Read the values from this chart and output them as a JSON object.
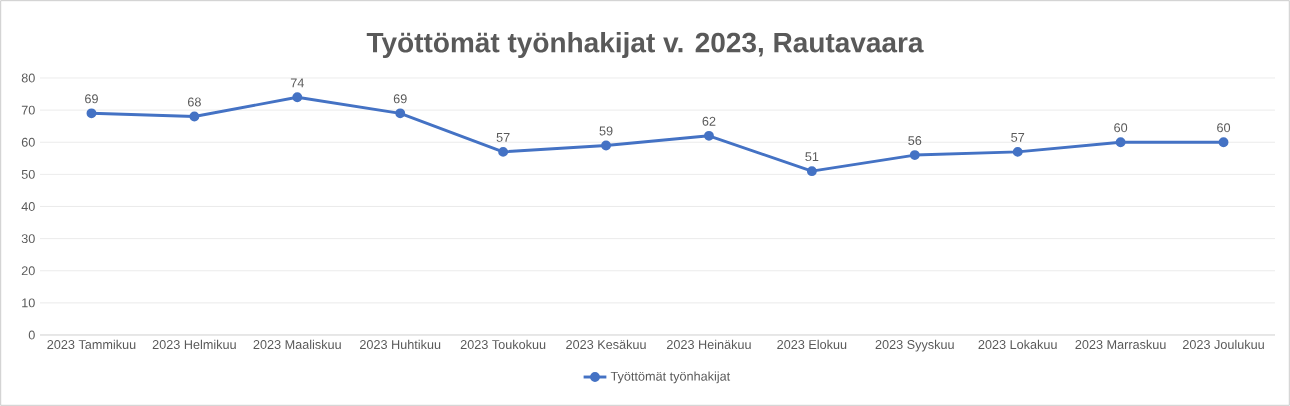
{
  "chart_data": {
    "type": "line",
    "title": "Työttömät työnhakijat v. 2023, Rautavaara",
    "categories": [
      "2023 Tammikuu",
      "2023 Helmikuu",
      "2023 Maaliskuu",
      "2023 Huhtikuu",
      "2023 Toukokuu",
      "2023 Kesäkuu",
      "2023 Heinäkuu",
      "2023 Elokuu",
      "2023 Syyskuu",
      "2023 Lokakuu",
      "2023 Marraskuu",
      "2023 Joulukuu"
    ],
    "series": [
      {
        "name": "Työttömät työnhakijat",
        "color": "#4472c4",
        "values": [
          69,
          68,
          74,
          69,
          57,
          59,
          62,
          51,
          56,
          57,
          60,
          60
        ]
      }
    ],
    "ylim": [
      0,
      80
    ],
    "yticks": [
      0,
      10,
      20,
      30,
      40,
      50,
      60,
      70,
      80
    ],
    "grid": "y",
    "legend": "bottom",
    "marker": "circle",
    "line_style": "solid",
    "data_labels": true
  }
}
